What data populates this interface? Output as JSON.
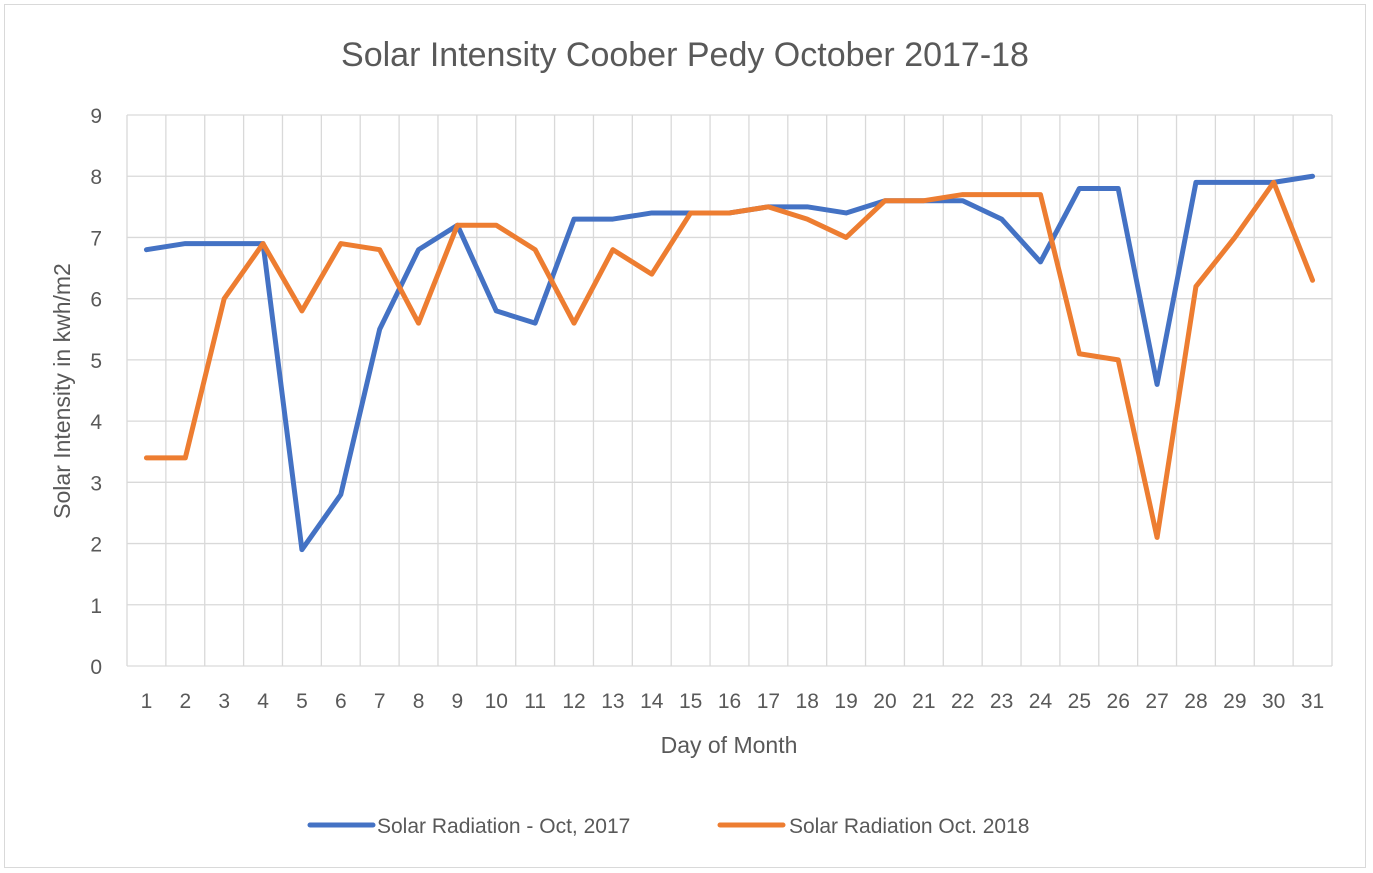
{
  "chart_data": {
    "type": "line",
    "title": "Solar Intensity Coober Pedy October 2017-18",
    "xlabel": "Day of Month",
    "ylabel": "Solar Intensity in kwh/m2",
    "ylim": [
      0,
      9
    ],
    "yticks": [
      "0",
      "1",
      "2",
      "3",
      "4",
      "5",
      "6",
      "7",
      "8",
      "9"
    ],
    "grid": true,
    "legend_position": "bottom",
    "categories": [
      "1",
      "2",
      "3",
      "4",
      "5",
      "6",
      "7",
      "8",
      "9",
      "10",
      "11",
      "12",
      "13",
      "14",
      "15",
      "16",
      "17",
      "18",
      "19",
      "20",
      "21",
      "22",
      "23",
      "24",
      "25",
      "26",
      "27",
      "28",
      "29",
      "30",
      "31"
    ],
    "series": [
      {
        "name": "Solar Radiation - Oct, 2017",
        "color": "#4472c4",
        "values": [
          6.8,
          6.9,
          6.9,
          6.9,
          1.9,
          2.8,
          5.5,
          6.8,
          7.2,
          5.8,
          5.6,
          7.3,
          7.3,
          7.4,
          7.4,
          7.4,
          7.5,
          7.5,
          7.4,
          7.6,
          7.6,
          7.6,
          7.3,
          6.6,
          7.8,
          7.8,
          4.6,
          7.9,
          7.9,
          7.9,
          8.0
        ]
      },
      {
        "name": "Solar Radiation Oct. 2018",
        "color": "#ed7d31",
        "values": [
          3.4,
          3.4,
          6.0,
          6.9,
          5.8,
          6.9,
          6.8,
          5.6,
          7.2,
          7.2,
          6.8,
          5.6,
          6.8,
          6.4,
          7.4,
          7.4,
          7.5,
          7.3,
          7.0,
          7.6,
          7.6,
          7.7,
          7.7,
          7.7,
          5.1,
          5.0,
          2.1,
          6.2,
          7.0,
          7.9,
          6.3
        ]
      }
    ]
  }
}
